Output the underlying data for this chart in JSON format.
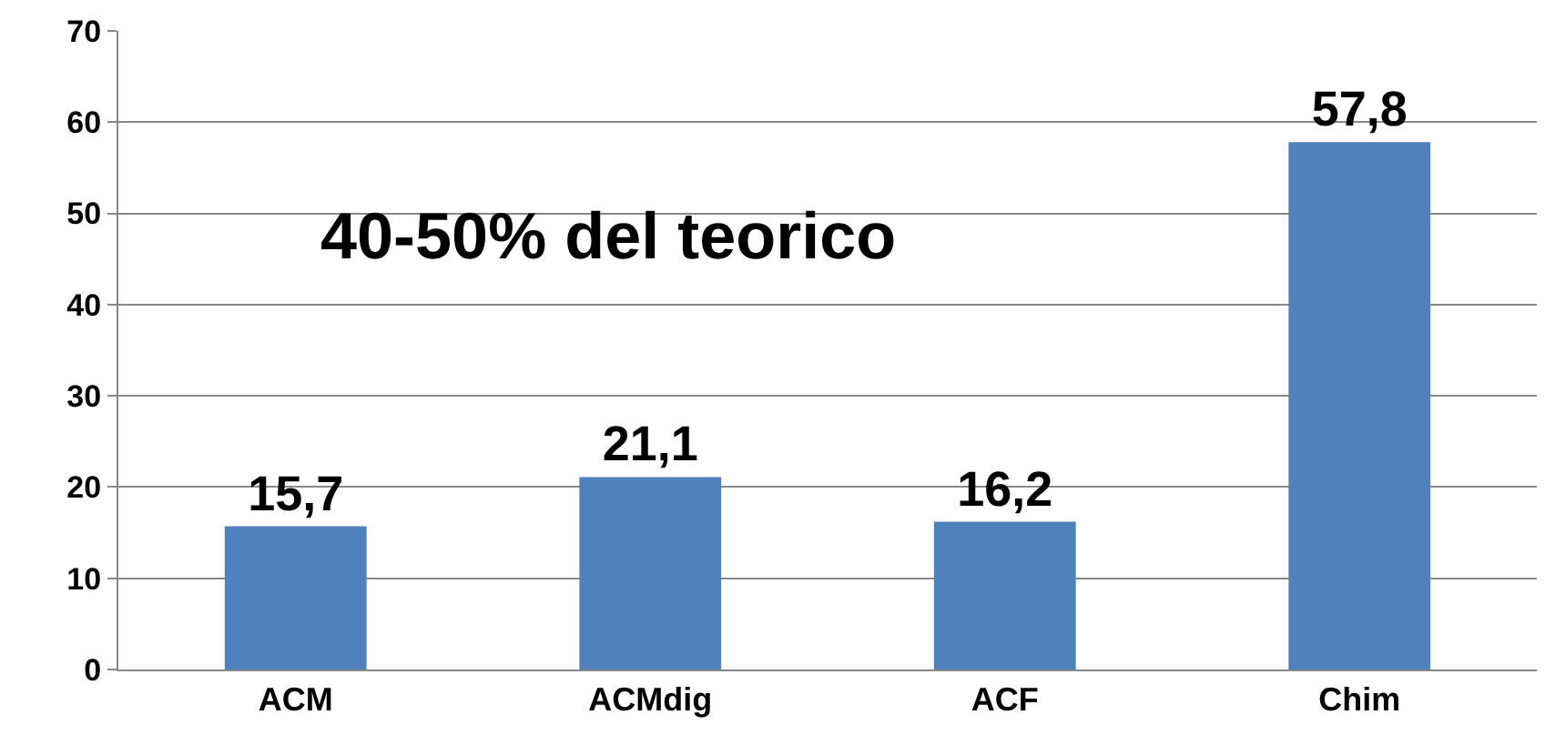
{
  "chart_data": {
    "type": "bar",
    "categories": [
      "ACM",
      "ACMdig",
      "ACF",
      "Chim"
    ],
    "values": [
      15.7,
      21.1,
      16.2,
      57.8
    ],
    "value_labels": [
      "15,7",
      "21,1",
      "16,2",
      "57,8"
    ],
    "color": "#4f81bd",
    "ylim": [
      0,
      70
    ],
    "yticks": [
      0,
      10,
      20,
      30,
      40,
      50,
      60,
      70
    ],
    "grid": "y",
    "annotations": [
      "40-50% del teorico"
    ]
  }
}
